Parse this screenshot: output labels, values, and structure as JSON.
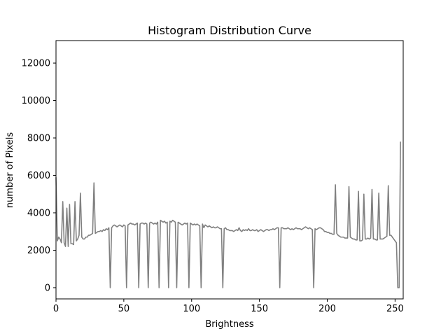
{
  "chart_data": {
    "type": "line",
    "title": "Histogram Distribution Curve",
    "xlabel": "Brightness",
    "ylabel": "number of Pixels",
    "xlim": [
      0,
      256
    ],
    "ylim": [
      -600,
      13200
    ],
    "xticks": [
      0,
      50,
      100,
      150,
      200,
      250
    ],
    "yticks": [
      0,
      2000,
      4000,
      6000,
      8000,
      10000,
      12000
    ],
    "grid": false,
    "line_color": "#808080",
    "series": [
      {
        "points": [
          [
            0,
            5900
          ],
          [
            1,
            2500
          ],
          [
            2,
            2700
          ],
          [
            3,
            2600
          ],
          [
            4,
            2400
          ],
          [
            5,
            4600
          ],
          [
            6,
            2400
          ],
          [
            7,
            2200
          ],
          [
            8,
            4250
          ],
          [
            9,
            2200
          ],
          [
            10,
            4450
          ],
          [
            11,
            2350
          ],
          [
            12,
            2350
          ],
          [
            13,
            2300
          ],
          [
            14,
            4600
          ],
          [
            15,
            2500
          ],
          [
            16,
            2600
          ],
          [
            17,
            2800
          ],
          [
            18,
            5050
          ],
          [
            19,
            2700
          ],
          [
            20,
            2600
          ],
          [
            21,
            2600
          ],
          [
            22,
            2700
          ],
          [
            23,
            2700
          ],
          [
            24,
            2800
          ],
          [
            25,
            2800
          ],
          [
            26,
            2850
          ],
          [
            27,
            2900
          ],
          [
            28,
            5600
          ],
          [
            29,
            2900
          ],
          [
            30,
            2950
          ],
          [
            31,
            3000
          ],
          [
            32,
            3000
          ],
          [
            33,
            3050
          ],
          [
            34,
            3000
          ],
          [
            35,
            3100
          ],
          [
            36,
            3050
          ],
          [
            37,
            3150
          ],
          [
            38,
            3100
          ],
          [
            39,
            3200
          ],
          [
            40,
            0
          ],
          [
            41,
            3200
          ],
          [
            42,
            3300
          ],
          [
            43,
            3350
          ],
          [
            44,
            3300
          ],
          [
            45,
            3250
          ],
          [
            46,
            3300
          ],
          [
            47,
            3350
          ],
          [
            48,
            3300
          ],
          [
            49,
            3250
          ],
          [
            50,
            3350
          ],
          [
            51,
            3300
          ],
          [
            52,
            0
          ],
          [
            53,
            3350
          ],
          [
            54,
            3400
          ],
          [
            55,
            3450
          ],
          [
            56,
            3400
          ],
          [
            57,
            3400
          ],
          [
            58,
            3350
          ],
          [
            59,
            3400
          ],
          [
            60,
            3450
          ],
          [
            61,
            0
          ],
          [
            62,
            3400
          ],
          [
            63,
            3450
          ],
          [
            64,
            3450
          ],
          [
            65,
            3400
          ],
          [
            66,
            3450
          ],
          [
            67,
            3400
          ],
          [
            68,
            0
          ],
          [
            69,
            3450
          ],
          [
            70,
            3500
          ],
          [
            71,
            3450
          ],
          [
            72,
            3400
          ],
          [
            73,
            3450
          ],
          [
            74,
            3400
          ],
          [
            75,
            3500
          ],
          [
            76,
            0
          ],
          [
            77,
            3600
          ],
          [
            78,
            3550
          ],
          [
            79,
            3500
          ],
          [
            80,
            3550
          ],
          [
            81,
            3450
          ],
          [
            82,
            3500
          ],
          [
            83,
            0
          ],
          [
            84,
            3550
          ],
          [
            85,
            3500
          ],
          [
            86,
            3600
          ],
          [
            87,
            3550
          ],
          [
            88,
            3500
          ],
          [
            89,
            0
          ],
          [
            90,
            3500
          ],
          [
            91,
            3450
          ],
          [
            92,
            3400
          ],
          [
            93,
            3350
          ],
          [
            94,
            3400
          ],
          [
            95,
            3450
          ],
          [
            96,
            3400
          ],
          [
            97,
            3450
          ],
          [
            98,
            0
          ],
          [
            99,
            3450
          ],
          [
            100,
            3400
          ],
          [
            101,
            3350
          ],
          [
            102,
            3400
          ],
          [
            103,
            3350
          ],
          [
            104,
            3400
          ],
          [
            105,
            3350
          ],
          [
            106,
            3300
          ],
          [
            107,
            0
          ],
          [
            108,
            3400
          ],
          [
            109,
            3200
          ],
          [
            110,
            3350
          ],
          [
            111,
            3300
          ],
          [
            112,
            3250
          ],
          [
            113,
            3300
          ],
          [
            114,
            3250
          ],
          [
            115,
            3200
          ],
          [
            116,
            3250
          ],
          [
            117,
            3200
          ],
          [
            118,
            3200
          ],
          [
            119,
            3250
          ],
          [
            120,
            3200
          ],
          [
            121,
            3150
          ],
          [
            122,
            3150
          ],
          [
            123,
            0
          ],
          [
            124,
            3150
          ],
          [
            125,
            3200
          ],
          [
            126,
            3100
          ],
          [
            127,
            3100
          ],
          [
            128,
            3050
          ],
          [
            129,
            3050
          ],
          [
            130,
            3050
          ],
          [
            131,
            3000
          ],
          [
            132,
            3050
          ],
          [
            133,
            3100
          ],
          [
            134,
            3050
          ],
          [
            135,
            3200
          ],
          [
            136,
            3050
          ],
          [
            137,
            3000
          ],
          [
            138,
            3100
          ],
          [
            139,
            3050
          ],
          [
            140,
            3100
          ],
          [
            141,
            3050
          ],
          [
            142,
            3150
          ],
          [
            143,
            3050
          ],
          [
            144,
            3050
          ],
          [
            145,
            3100
          ],
          [
            146,
            3050
          ],
          [
            147,
            3050
          ],
          [
            148,
            3100
          ],
          [
            149,
            3000
          ],
          [
            150,
            3050
          ],
          [
            151,
            3100
          ],
          [
            152,
            3050
          ],
          [
            153,
            3000
          ],
          [
            154,
            3050
          ],
          [
            155,
            3100
          ],
          [
            156,
            3100
          ],
          [
            157,
            3050
          ],
          [
            158,
            3100
          ],
          [
            159,
            3100
          ],
          [
            160,
            3150
          ],
          [
            161,
            3100
          ],
          [
            162,
            3150
          ],
          [
            163,
            3200
          ],
          [
            164,
            3200
          ],
          [
            165,
            0
          ],
          [
            166,
            3200
          ],
          [
            167,
            3200
          ],
          [
            168,
            3150
          ],
          [
            169,
            3150
          ],
          [
            170,
            3150
          ],
          [
            171,
            3200
          ],
          [
            172,
            3150
          ],
          [
            173,
            3100
          ],
          [
            174,
            3150
          ],
          [
            175,
            3100
          ],
          [
            176,
            3150
          ],
          [
            177,
            3200
          ],
          [
            178,
            3150
          ],
          [
            179,
            3150
          ],
          [
            180,
            3150
          ],
          [
            181,
            3100
          ],
          [
            182,
            3150
          ],
          [
            183,
            3200
          ],
          [
            184,
            3250
          ],
          [
            185,
            3200
          ],
          [
            186,
            3150
          ],
          [
            187,
            3200
          ],
          [
            188,
            3150
          ],
          [
            189,
            3100
          ],
          [
            190,
            0
          ],
          [
            191,
            3150
          ],
          [
            192,
            3100
          ],
          [
            193,
            3150
          ],
          [
            194,
            3200
          ],
          [
            195,
            3200
          ],
          [
            196,
            3150
          ],
          [
            197,
            3100
          ],
          [
            198,
            3000
          ],
          [
            199,
            3000
          ],
          [
            200,
            2950
          ],
          [
            201,
            2950
          ],
          [
            202,
            2900
          ],
          [
            203,
            2900
          ],
          [
            204,
            2850
          ],
          [
            205,
            2850
          ],
          [
            206,
            5500
          ],
          [
            207,
            2900
          ],
          [
            208,
            2800
          ],
          [
            209,
            2750
          ],
          [
            210,
            2700
          ],
          [
            211,
            2700
          ],
          [
            212,
            2700
          ],
          [
            213,
            2650
          ],
          [
            214,
            2650
          ],
          [
            215,
            2650
          ],
          [
            216,
            5400
          ],
          [
            217,
            2700
          ],
          [
            218,
            2650
          ],
          [
            219,
            2600
          ],
          [
            220,
            2600
          ],
          [
            221,
            2550
          ],
          [
            222,
            2550
          ],
          [
            223,
            5150
          ],
          [
            224,
            2500
          ],
          [
            225,
            2500
          ],
          [
            226,
            2550
          ],
          [
            227,
            5000
          ],
          [
            228,
            2600
          ],
          [
            229,
            2600
          ],
          [
            230,
            2650
          ],
          [
            231,
            2600
          ],
          [
            232,
            2650
          ],
          [
            233,
            5250
          ],
          [
            234,
            2600
          ],
          [
            235,
            2600
          ],
          [
            236,
            2550
          ],
          [
            237,
            2550
          ],
          [
            238,
            5050
          ],
          [
            239,
            2600
          ],
          [
            240,
            2600
          ],
          [
            241,
            2600
          ],
          [
            242,
            2650
          ],
          [
            243,
            2700
          ],
          [
            244,
            2750
          ],
          [
            245,
            5450
          ],
          [
            246,
            2800
          ],
          [
            247,
            2800
          ],
          [
            248,
            2700
          ],
          [
            249,
            2600
          ],
          [
            250,
            2500
          ],
          [
            251,
            2400
          ],
          [
            252,
            0
          ],
          [
            253,
            0
          ],
          [
            254,
            7800
          ]
        ]
      }
    ]
  }
}
